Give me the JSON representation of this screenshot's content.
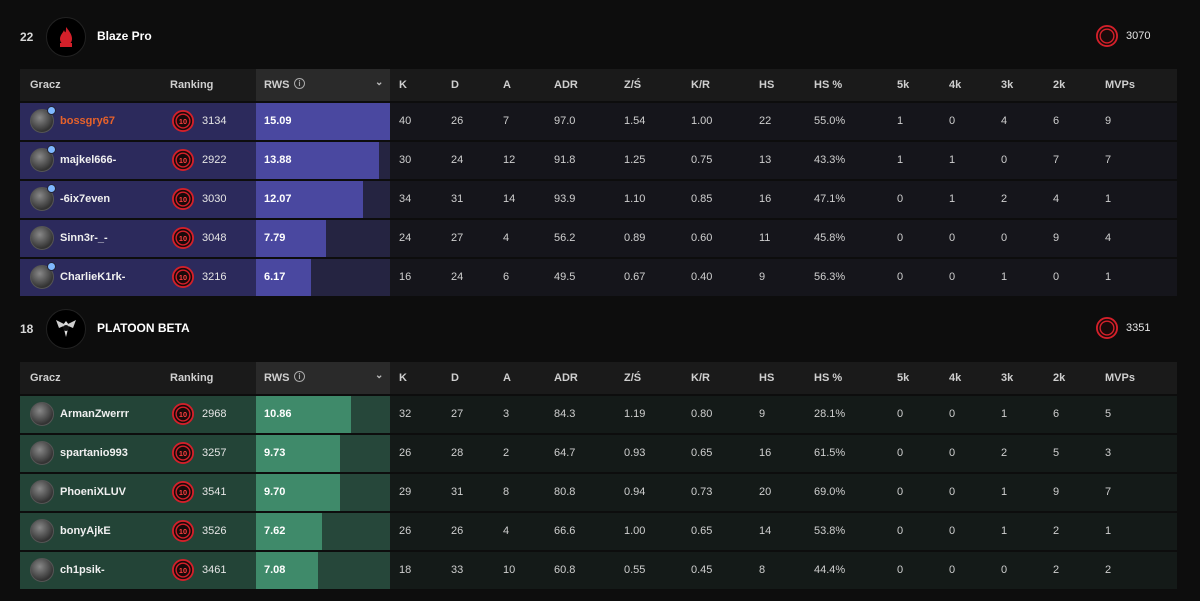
{
  "columns": {
    "player": "Gracz",
    "ranking": "Ranking",
    "rws": "RWS",
    "k": "K",
    "d": "D",
    "a": "A",
    "adr": "ADR",
    "kd_round": "Z/Ś",
    "kr": "K/R",
    "hs": "HS",
    "hs_pct": "HS %",
    "k5": "5k",
    "k4": "4k",
    "k3": "3k",
    "k2": "2k",
    "mvps": "MVPs",
    "info_icon": "i",
    "sort_icon": "chevron-down-icon"
  },
  "colors": {
    "team_a_accent": "#4a48a0",
    "team_b_accent": "#3f8a6a",
    "highlight_player": "#e8622a",
    "level_badge": "#d4202a"
  },
  "teams": [
    {
      "score": "22",
      "name": "Blaze Pro",
      "logo_icon": "flame-logo-icon",
      "elo": "3070",
      "players": [
        {
          "name": "bossgry67",
          "highlight": true,
          "badge": true,
          "level": "10",
          "elo": "3134",
          "rws": "15.09",
          "rws_fill": 1.0,
          "k": "40",
          "d": "26",
          "a": "7",
          "adr": "97.0",
          "kd": "1.54",
          "kr": "1.00",
          "hs": "22",
          "hs_pct": "55.0%",
          "k5": "1",
          "k4": "0",
          "k3": "4",
          "k2": "6",
          "mvps": "9"
        },
        {
          "name": "majkel666-",
          "highlight": false,
          "badge": true,
          "level": "10",
          "elo": "2922",
          "rws": "13.88",
          "rws_fill": 0.92,
          "k": "30",
          "d": "24",
          "a": "12",
          "adr": "91.8",
          "kd": "1.25",
          "kr": "0.75",
          "hs": "13",
          "hs_pct": "43.3%",
          "k5": "1",
          "k4": "1",
          "k3": "0",
          "k2": "7",
          "mvps": "7"
        },
        {
          "name": "-6ix7even",
          "highlight": false,
          "badge": true,
          "level": "10",
          "elo": "3030",
          "rws": "12.07",
          "rws_fill": 0.8,
          "k": "34",
          "d": "31",
          "a": "14",
          "adr": "93.9",
          "kd": "1.10",
          "kr": "0.85",
          "hs": "16",
          "hs_pct": "47.1%",
          "k5": "0",
          "k4": "1",
          "k3": "2",
          "k2": "4",
          "mvps": "1"
        },
        {
          "name": "Sinn3r-_-",
          "highlight": false,
          "badge": false,
          "level": "10",
          "elo": "3048",
          "rws": "7.79",
          "rws_fill": 0.52,
          "k": "24",
          "d": "27",
          "a": "4",
          "adr": "56.2",
          "kd": "0.89",
          "kr": "0.60",
          "hs": "11",
          "hs_pct": "45.8%",
          "k5": "0",
          "k4": "0",
          "k3": "0",
          "k2": "9",
          "mvps": "4"
        },
        {
          "name": "CharlieK1rk-",
          "highlight": false,
          "badge": true,
          "level": "10",
          "elo": "3216",
          "rws": "6.17",
          "rws_fill": 0.41,
          "k": "16",
          "d": "24",
          "a": "6",
          "adr": "49.5",
          "kd": "0.67",
          "kr": "0.40",
          "hs": "9",
          "hs_pct": "56.3%",
          "k5": "0",
          "k4": "0",
          "k3": "1",
          "k2": "0",
          "mvps": "1"
        }
      ]
    },
    {
      "score": "18",
      "name": "PLATOON BETA",
      "logo_icon": "skull-wings-logo-icon",
      "elo": "3351",
      "players": [
        {
          "name": "ArmanZwerrr",
          "highlight": false,
          "badge": false,
          "level": "10",
          "elo": "2968",
          "rws": "10.86",
          "rws_fill": 0.71,
          "k": "32",
          "d": "27",
          "a": "3",
          "adr": "84.3",
          "kd": "1.19",
          "kr": "0.80",
          "hs": "9",
          "hs_pct": "28.1%",
          "k5": "0",
          "k4": "0",
          "k3": "1",
          "k2": "6",
          "mvps": "5"
        },
        {
          "name": "spartanio993",
          "highlight": false,
          "badge": false,
          "level": "10",
          "elo": "3257",
          "rws": "9.73",
          "rws_fill": 0.63,
          "k": "26",
          "d": "28",
          "a": "2",
          "adr": "64.7",
          "kd": "0.93",
          "kr": "0.65",
          "hs": "16",
          "hs_pct": "61.5%",
          "k5": "0",
          "k4": "0",
          "k3": "2",
          "k2": "5",
          "mvps": "3"
        },
        {
          "name": "PhoeniXLUV",
          "highlight": false,
          "badge": false,
          "level": "10",
          "elo": "3541",
          "rws": "9.70",
          "rws_fill": 0.63,
          "k": "29",
          "d": "31",
          "a": "8",
          "adr": "80.8",
          "kd": "0.94",
          "kr": "0.73",
          "hs": "20",
          "hs_pct": "69.0%",
          "k5": "0",
          "k4": "0",
          "k3": "1",
          "k2": "9",
          "mvps": "7"
        },
        {
          "name": "bonyAjkE",
          "highlight": false,
          "badge": false,
          "level": "10",
          "elo": "3526",
          "rws": "7.62",
          "rws_fill": 0.49,
          "k": "26",
          "d": "26",
          "a": "4",
          "adr": "66.6",
          "kd": "1.00",
          "kr": "0.65",
          "hs": "14",
          "hs_pct": "53.8%",
          "k5": "0",
          "k4": "0",
          "k3": "1",
          "k2": "2",
          "mvps": "1"
        },
        {
          "name": "ch1psik-",
          "highlight": false,
          "badge": false,
          "level": "10",
          "elo": "3461",
          "rws": "7.08",
          "rws_fill": 0.46,
          "k": "18",
          "d": "33",
          "a": "10",
          "adr": "60.8",
          "kd": "0.55",
          "kr": "0.45",
          "hs": "8",
          "hs_pct": "44.4%",
          "k5": "0",
          "k4": "0",
          "k3": "0",
          "k2": "2",
          "mvps": "2"
        }
      ]
    }
  ]
}
